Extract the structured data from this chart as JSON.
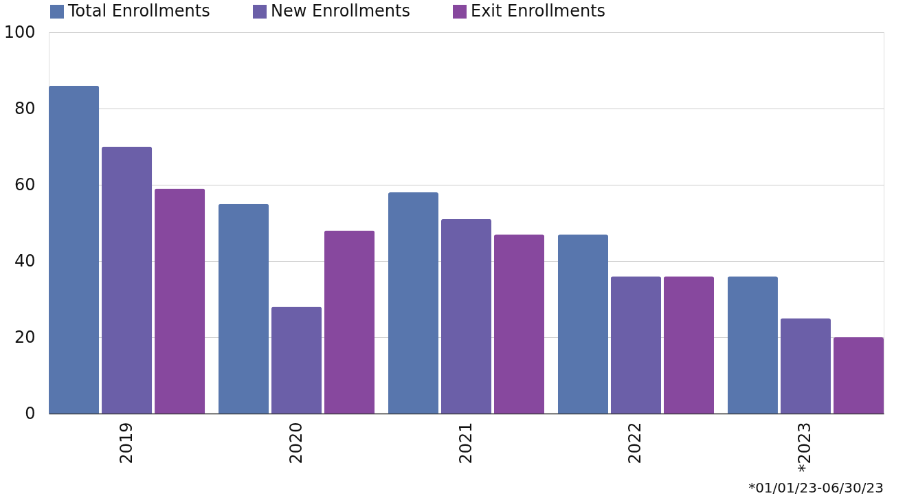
{
  "chart_data": {
    "type": "bar",
    "categories": [
      "2019",
      "2020",
      "2021",
      "2022",
      "*2023"
    ],
    "series": [
      {
        "name": "Total Enrollments",
        "color": "#5876ad",
        "values": [
          86,
          55,
          58,
          47,
          36
        ]
      },
      {
        "name": "New Enrollments",
        "color": "#6b5fa8",
        "values": [
          70,
          28,
          51,
          36,
          25
        ]
      },
      {
        "name": "Exit Enrollments",
        "color": "#87489e",
        "values": [
          59,
          48,
          47,
          36,
          20
        ]
      }
    ],
    "ylim": [
      0,
      100
    ],
    "yticks": [
      0,
      20,
      40,
      60,
      80,
      100
    ],
    "grid": "y",
    "legend": "top",
    "annotations": [
      "*01/01/23-06/30/23"
    ]
  }
}
